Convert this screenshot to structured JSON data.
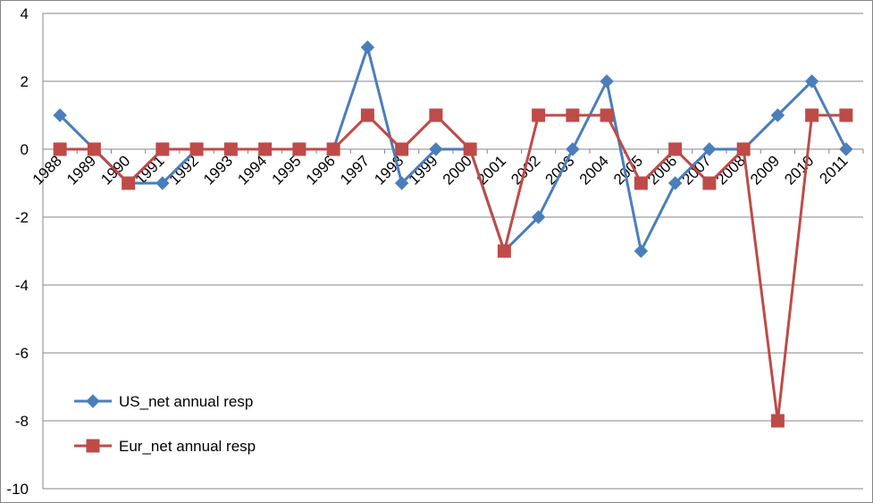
{
  "chart_data": {
    "type": "line",
    "categories": [
      "1988",
      "1989",
      "1990",
      "1991",
      "1992",
      "1993",
      "1994",
      "1995",
      "1996",
      "1997",
      "1998",
      "1999",
      "2000",
      "2001",
      "2002",
      "2003",
      "2004",
      "2005",
      "2006",
      "2007",
      "2008",
      "2009",
      "2010",
      "2011"
    ],
    "series": [
      {
        "name": "US_net annual resp",
        "color": "#4a7ebb",
        "marker": "diamond",
        "values": [
          1,
          0,
          -1,
          -1,
          0,
          0,
          0,
          0,
          0,
          3,
          -1,
          0,
          0,
          -3,
          -2,
          0,
          2,
          -3,
          -1,
          0,
          0,
          1,
          2,
          0
        ]
      },
      {
        "name": "Eur_net annual resp",
        "color": "#be4b48",
        "marker": "square",
        "values": [
          0,
          0,
          -1,
          0,
          0,
          0,
          0,
          0,
          0,
          1,
          0,
          1,
          0,
          -3,
          1,
          1,
          1,
          -1,
          0,
          -1,
          0,
          -8,
          1,
          1
        ]
      }
    ],
    "yticks": [
      "4",
      "2",
      "0",
      "-2",
      "-4",
      "-6",
      "-8",
      "-10"
    ],
    "ytick_values": [
      4,
      2,
      0,
      -2,
      -4,
      -6,
      -8,
      -10
    ],
    "ylim": [
      -10,
      4
    ],
    "grid": true,
    "legend_position": "bottom-left",
    "title": "",
    "xlabel": "",
    "ylabel": ""
  }
}
